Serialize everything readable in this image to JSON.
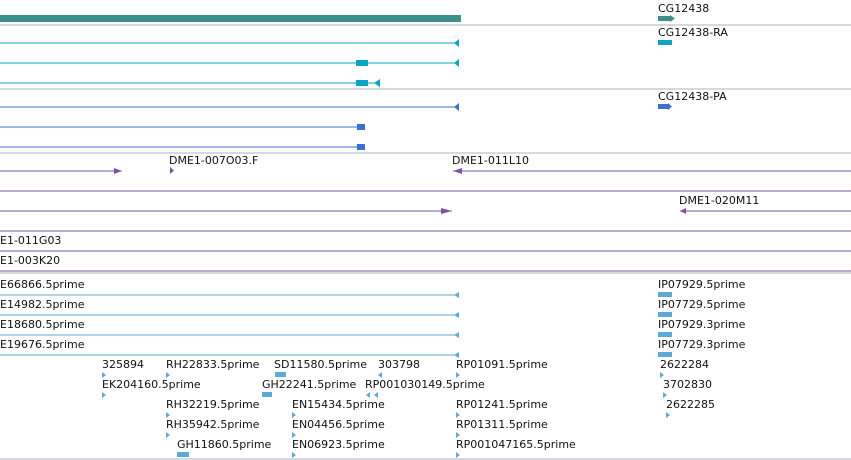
{
  "colors": {
    "gene": "#3f8f8c",
    "transcript": "#0aa5c2",
    "protein": "#3c6fd0",
    "clone": "#7b54a6",
    "est": "#5fa9d6",
    "divider": "#aeb4bd"
  },
  "gene_track": {
    "gene_label": "CG12438",
    "transcript_label": "CG12438-RA",
    "protein_label": "CG12438-PA"
  },
  "clone_track": {
    "labels": [
      "DME1-007O03.F",
      "DME1-011L10",
      "DME1-020M11",
      "E1-011G03",
      "E1-003K20"
    ]
  },
  "est_track": {
    "left_labels": [
      "E66866.5prime",
      "E14982.5prime",
      "E18680.5prime",
      "E19676.5prime"
    ],
    "right_labels": [
      "IP07929.5prime",
      "IP07729.5prime",
      "IP07929.3prime",
      "IP07729.3prime"
    ],
    "grid_labels": [
      "325894",
      "RH22833.5prime",
      "SD11580.5prime",
      "303798",
      "RP01091.5prime",
      "2622284",
      "EK204160.5prime",
      "GH22241.5prime",
      "RP001030149.5prime",
      "3702830",
      "RH32219.5prime",
      "EN15434.5prime",
      "RP01241.5prime",
      "2622285",
      "RH35942.5prime",
      "EN04456.5prime",
      "RP01311.5prime",
      "GH11860.5prime",
      "EN06923.5prime",
      "RP001047165.5prime"
    ]
  }
}
